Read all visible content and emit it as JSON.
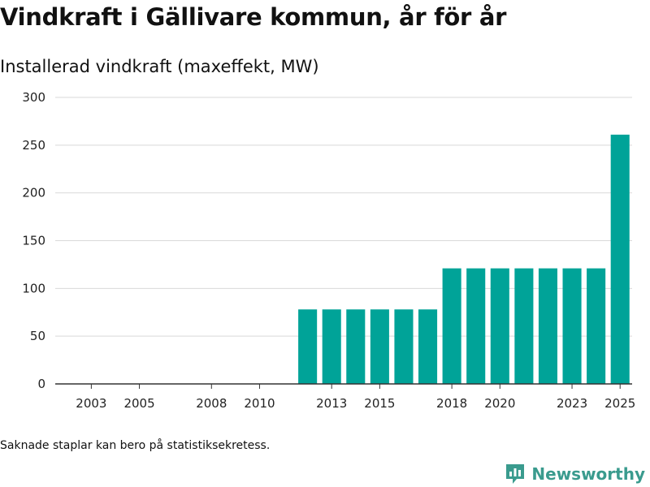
{
  "title": "Vindkraft i Gällivare kommun, år för år",
  "subtitle": "Installerad vindkraft (maxeffekt, MW)",
  "footnote": "Saknade staplar kan bero på statistiksekretess.",
  "brand": {
    "name": "Newsworthy",
    "icon": "newsworthy-logo-icon",
    "color": "#3a9b8e"
  },
  "chart_data": {
    "type": "bar",
    "title": "Vindkraft i Gällivare kommun, år för år",
    "xlabel": "",
    "ylabel": "Installerad vindkraft (maxeffekt, MW)",
    "ylim": [
      0,
      300
    ],
    "yticks": [
      0,
      50,
      100,
      150,
      200,
      250,
      300
    ],
    "categories": [
      2002,
      2003,
      2004,
      2005,
      2006,
      2007,
      2008,
      2009,
      2010,
      2011,
      2012,
      2013,
      2014,
      2015,
      2016,
      2017,
      2018,
      2019,
      2020,
      2021,
      2022,
      2023,
      2024,
      2025
    ],
    "values": [
      0,
      0,
      0,
      0,
      0,
      0,
      0,
      0,
      0,
      0,
      78,
      78,
      78,
      78,
      78,
      78,
      121,
      121,
      121,
      121,
      121,
      121,
      121,
      261
    ],
    "xtick_labels": [
      2003,
      2005,
      2008,
      2010,
      2013,
      2015,
      2018,
      2020,
      2023,
      2025
    ],
    "bar_color": "#00a398",
    "grid": true
  }
}
